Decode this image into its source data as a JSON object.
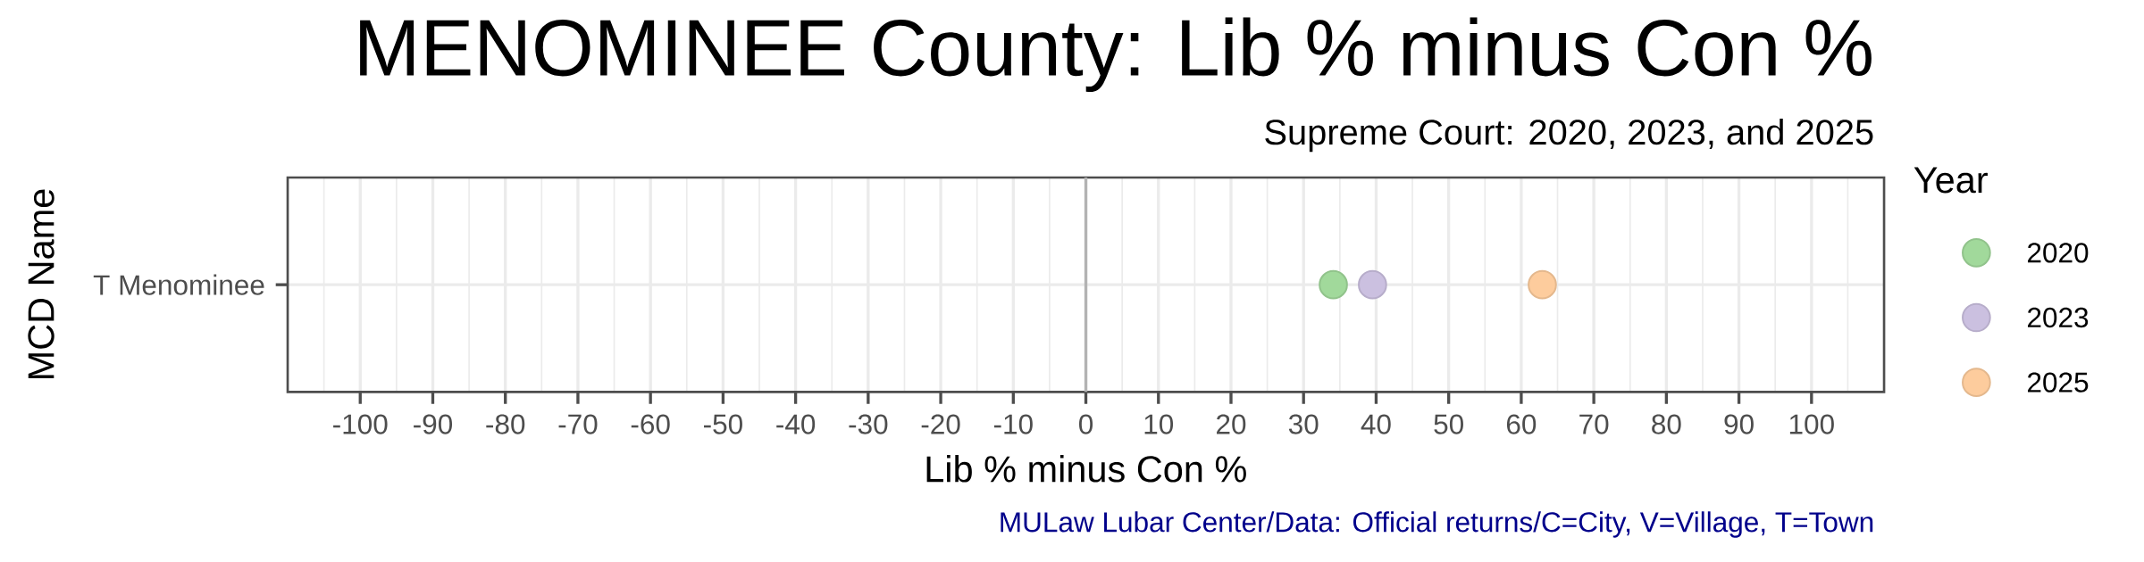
{
  "chart_data": {
    "type": "scatter",
    "orientation": "horizontal",
    "title": "MENOMINEE County: Lib % minus Con %",
    "subtitle": "Supreme Court: 2020, 2023, and 2025",
    "xlabel": "Lib % minus Con %",
    "ylabel": "MCD Name",
    "legend_title": "Year",
    "annotations": [
      "MULaw Lubar Center/Data: Official returns/C=City, V=Village, T=Town"
    ],
    "categories": [
      "T Menominee"
    ],
    "series": [
      {
        "name": "2020",
        "color": "#a1d99b",
        "values": [
          34.1
        ]
      },
      {
        "name": "2023",
        "color": "#cbc0e0",
        "values": [
          39.5
        ]
      },
      {
        "name": "2025",
        "color": "#fdcc9d",
        "values": [
          62.9
        ]
      }
    ],
    "xlim": [
      -110,
      110
    ],
    "xticks": [
      -100,
      -90,
      -80,
      -70,
      -60,
      -50,
      -40,
      -30,
      -20,
      -10,
      0,
      10,
      20,
      30,
      40,
      50,
      60,
      70,
      80,
      90,
      100
    ],
    "ref_lines": [
      {
        "axis": "x",
        "value": 0,
        "color": "#b3b3b3"
      }
    ],
    "grid": true,
    "legend": "right",
    "marker": "circle"
  }
}
